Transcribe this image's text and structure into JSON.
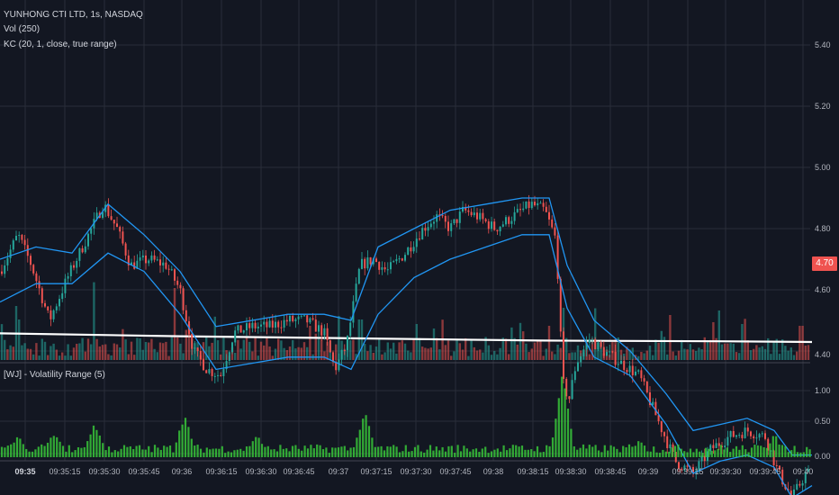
{
  "legend": {
    "symbol": "YUNHONG CTI LTD, 1s, NASDAQ",
    "volume": "Vol (250)",
    "keltner": "KC (20, 1, close, true range)",
    "volatility": "[WJ] - Volatility Range (5)"
  },
  "last_price_label": "4.70",
  "colors": {
    "background": "#131722",
    "grid": "#2a2e39",
    "up": "#26a69a",
    "down": "#ef5350",
    "keltner": "#2196f3",
    "volume_ma": "#ffffff",
    "volatility": "#3bd13b",
    "axis_text": "#b2b5be"
  },
  "chart_data": [
    {
      "type": "candlestick",
      "pane": "price",
      "title": "YUNHONG CTI LTD, 1s, NASDAQ",
      "y_ticks": [
        "5.40",
        "5.20",
        "5.00",
        "4.80",
        "4.60"
      ],
      "ylim": [
        4.58,
        5.46
      ],
      "last_price": 4.7,
      "price_path": [
        [
          0,
          5.03
        ],
        [
          20,
          5.09
        ],
        [
          35,
          5.04
        ],
        [
          55,
          4.95
        ],
        [
          75,
          5.02
        ],
        [
          95,
          5.08
        ],
        [
          115,
          5.14
        ],
        [
          130,
          5.1
        ],
        [
          145,
          5.04
        ],
        [
          165,
          5.05
        ],
        [
          185,
          5.04
        ],
        [
          200,
          5.0
        ],
        [
          215,
          4.9
        ],
        [
          230,
          4.87
        ],
        [
          245,
          4.86
        ],
        [
          260,
          4.93
        ],
        [
          280,
          4.94
        ],
        [
          300,
          4.94
        ],
        [
          320,
          4.95
        ],
        [
          340,
          4.95
        ],
        [
          360,
          4.93
        ],
        [
          372,
          4.87
        ],
        [
          385,
          4.91
        ],
        [
          400,
          5.04
        ],
        [
          415,
          5.05
        ],
        [
          430,
          5.03
        ],
        [
          450,
          5.06
        ],
        [
          470,
          5.1
        ],
        [
          485,
          5.12
        ],
        [
          500,
          5.1
        ],
        [
          515,
          5.13
        ],
        [
          530,
          5.12
        ],
        [
          550,
          5.1
        ],
        [
          570,
          5.12
        ],
        [
          590,
          5.14
        ],
        [
          605,
          5.13
        ],
        [
          618,
          5.08
        ],
        [
          625,
          4.85
        ],
        [
          632,
          4.82
        ],
        [
          640,
          4.88
        ],
        [
          655,
          4.92
        ],
        [
          670,
          4.9
        ],
        [
          690,
          4.88
        ],
        [
          710,
          4.86
        ],
        [
          730,
          4.79
        ],
        [
          750,
          4.72
        ],
        [
          770,
          4.7
        ],
        [
          790,
          4.74
        ],
        [
          810,
          4.76
        ],
        [
          830,
          4.77
        ],
        [
          850,
          4.76
        ],
        [
          865,
          4.7
        ],
        [
          880,
          4.66
        ],
        [
          895,
          4.7
        ],
        [
          902,
          4.7
        ]
      ],
      "keltner_upper": [
        [
          0,
          5.05
        ],
        [
          40,
          5.07
        ],
        [
          80,
          5.06
        ],
        [
          120,
          5.14
        ],
        [
          160,
          5.09
        ],
        [
          200,
          5.03
        ],
        [
          240,
          4.94
        ],
        [
          280,
          4.95
        ],
        [
          320,
          4.96
        ],
        [
          360,
          4.96
        ],
        [
          390,
          4.95
        ],
        [
          420,
          5.07
        ],
        [
          460,
          5.1
        ],
        [
          500,
          5.13
        ],
        [
          540,
          5.14
        ],
        [
          580,
          5.15
        ],
        [
          610,
          5.15
        ],
        [
          630,
          5.04
        ],
        [
          660,
          4.95
        ],
        [
          700,
          4.9
        ],
        [
          740,
          4.83
        ],
        [
          770,
          4.77
        ],
        [
          800,
          4.78
        ],
        [
          830,
          4.79
        ],
        [
          860,
          4.77
        ],
        [
          880,
          4.73
        ],
        [
          902,
          4.73
        ]
      ],
      "keltner_lower": [
        [
          0,
          4.98
        ],
        [
          40,
          5.01
        ],
        [
          80,
          5.01
        ],
        [
          120,
          5.06
        ],
        [
          160,
          5.03
        ],
        [
          200,
          4.96
        ],
        [
          240,
          4.87
        ],
        [
          280,
          4.88
        ],
        [
          320,
          4.89
        ],
        [
          360,
          4.89
        ],
        [
          390,
          4.87
        ],
        [
          420,
          4.96
        ],
        [
          460,
          5.02
        ],
        [
          500,
          5.05
        ],
        [
          540,
          5.07
        ],
        [
          580,
          5.09
        ],
        [
          610,
          5.09
        ],
        [
          630,
          4.97
        ],
        [
          660,
          4.89
        ],
        [
          700,
          4.86
        ],
        [
          740,
          4.78
        ],
        [
          770,
          4.7
        ],
        [
          800,
          4.72
        ],
        [
          830,
          4.73
        ],
        [
          860,
          4.71
        ],
        [
          880,
          4.66
        ],
        [
          902,
          4.68
        ]
      ]
    },
    {
      "type": "bar",
      "pane": "volume",
      "title": "Vol (250)",
      "y_ticks": [
        "4.40"
      ],
      "moving_average": [
        [
          0,
          0.37
        ],
        [
          200,
          0.33
        ],
        [
          400,
          0.3
        ],
        [
          600,
          0.27
        ],
        [
          800,
          0.26
        ],
        [
          902,
          0.25
        ]
      ]
    },
    {
      "type": "bar",
      "pane": "volatility",
      "title": "[WJ] - Volatility Range (5)",
      "y_ticks": [
        "1.00",
        "0.50",
        "0.00"
      ],
      "ylim": [
        0,
        1.28
      ],
      "peaks": [
        [
          20,
          0.25
        ],
        [
          60,
          0.3
        ],
        [
          105,
          0.45
        ],
        [
          205,
          0.55
        ],
        [
          285,
          0.28
        ],
        [
          405,
          0.6
        ],
        [
          625,
          1.15
        ],
        [
          710,
          0.22
        ],
        [
          860,
          0.28
        ]
      ]
    }
  ],
  "time_axis": [
    "09:35",
    "09:35:15",
    "09:35:30",
    "09:35:45",
    "09:36",
    "09:36:15",
    "09:36:30",
    "09:36:45",
    "09:37",
    "09:37:15",
    "09:37:30",
    "09:37:45",
    "09:38",
    "09:38:15",
    "09:38:30",
    "09:38:45",
    "09:39",
    "09:39:15",
    "09:39:30",
    "09:39:45",
    "09:40"
  ]
}
